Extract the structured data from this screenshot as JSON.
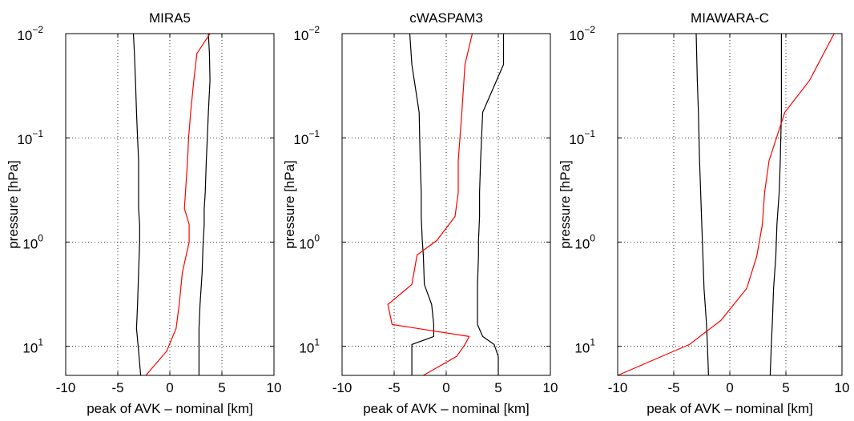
{
  "chart_data": [
    {
      "type": "line",
      "title": "MIRA5",
      "xlabel": "peak of AVK – nominal [km]",
      "ylabel": "pressure [hPa]",
      "xlim": [
        -10,
        10
      ],
      "xticks": [
        -10,
        -5,
        0,
        5,
        10
      ],
      "ylim": [
        0.01,
        19
      ],
      "yscale": "log",
      "yticks": [
        {
          "value": 0.01,
          "label": "10",
          "exponent": "−2"
        },
        {
          "value": 0.1,
          "label": "10",
          "exponent": "−1"
        },
        {
          "value": 1,
          "label": "10",
          "exponent": "0"
        },
        {
          "value": 10,
          "label": "10",
          "exponent": "1"
        }
      ],
      "grid": true,
      "y": [
        0.01,
        0.0155,
        0.0282,
        0.057,
        0.1,
        0.165,
        0.334,
        0.476,
        0.678,
        1,
        1.96,
        3.97,
        6.74,
        11.1,
        19
      ],
      "series": [
        {
          "color": "#000000",
          "values": [
            -3.5,
            -3.4,
            -3.3,
            -3.2,
            -3.1,
            -3.0,
            -3.0,
            -3.0,
            -2.9,
            -2.9,
            -3.0,
            -3.1,
            -3.2,
            -3.0,
            -2.8
          ]
        },
        {
          "color": "#000000",
          "values": [
            3.7,
            3.8,
            3.85,
            3.7,
            3.6,
            3.5,
            3.4,
            3.3,
            3.3,
            3.2,
            3.1,
            2.9,
            2.8,
            2.8,
            2.8
          ]
        },
        {
          "color": "#ff0000",
          "values": [
            3.85,
            2.6,
            2.3,
            2.0,
            1.8,
            1.7,
            1.5,
            1.4,
            1.85,
            1.85,
            1.2,
            0.9,
            0.6,
            -0.3,
            -2.3
          ]
        }
      ]
    },
    {
      "type": "line",
      "title": "cWASPAM3",
      "xlabel": "peak of AVK – nominal [km]",
      "ylabel": "pressure [hPa]",
      "xlim": [
        -10,
        10
      ],
      "xticks": [
        -10,
        -5,
        0,
        5,
        10
      ],
      "ylim": [
        0.01,
        19
      ],
      "yscale": "log",
      "yticks": [
        {
          "value": 0.01,
          "label": "10",
          "exponent": "−2"
        },
        {
          "value": 0.1,
          "label": "10",
          "exponent": "−1"
        },
        {
          "value": 1,
          "label": "10",
          "exponent": "0"
        },
        {
          "value": 10,
          "label": "10",
          "exponent": "1"
        }
      ],
      "grid": true,
      "y": [
        0.01,
        0.0198,
        0.057,
        0.165,
        0.334,
        0.568,
        0.965,
        1.33,
        2.55,
        3.97,
        6.17,
        8.05,
        9.6,
        12.5,
        19
      ],
      "series": [
        {
          "color": "#000000",
          "values": [
            -3.5,
            -3.3,
            -2.6,
            -2.5,
            -2.4,
            -2.4,
            -2.3,
            -2.2,
            -2.1,
            -1.4,
            -1.2,
            -1.2,
            -3.3,
            -3.3,
            -3.3
          ]
        },
        {
          "color": "#000000",
          "values": [
            5.5,
            5.5,
            3.5,
            3.3,
            3.2,
            3.2,
            3.1,
            3.1,
            3.0,
            3.0,
            3.0,
            3.5,
            4.6,
            5.0,
            5.0
          ]
        },
        {
          "color": "#ff0000",
          "values": [
            2.5,
            1.8,
            1.5,
            1.15,
            1.15,
            0.85,
            -0.9,
            -2.8,
            -3.3,
            -5.6,
            -5.2,
            2.2,
            1.8,
            1.0,
            -2.2
          ]
        }
      ]
    },
    {
      "type": "line",
      "title": "MIAWARA-C",
      "xlabel": "peak of AVK – nominal [km]",
      "ylabel": "pressure [hPa]",
      "xlim": [
        -10,
        10
      ],
      "xticks": [
        -10,
        -5,
        0,
        5,
        10
      ],
      "ylim": [
        0.01,
        19
      ],
      "yscale": "log",
      "yticks": [
        {
          "value": 0.01,
          "label": "10",
          "exponent": "−2"
        },
        {
          "value": 0.1,
          "label": "10",
          "exponent": "−1"
        },
        {
          "value": 1,
          "label": "10",
          "exponent": "0"
        },
        {
          "value": 10,
          "label": "10",
          "exponent": "1"
        }
      ],
      "grid": true,
      "y": [
        0.01,
        0.0282,
        0.057,
        0.165,
        0.334,
        0.678,
        1.37,
        2.79,
        5.65,
        9.6,
        19
      ],
      "series": [
        {
          "color": "#000000",
          "values": [
            -3.0,
            -2.9,
            -2.8,
            -2.7,
            -2.6,
            -2.5,
            -2.4,
            -2.3,
            -2.1,
            -2.0,
            -1.9
          ]
        },
        {
          "color": "#000000",
          "values": [
            4.6,
            4.6,
            4.6,
            4.5,
            4.4,
            4.2,
            4.1,
            3.9,
            3.8,
            3.7,
            3.6
          ]
        },
        {
          "color": "#ff0000",
          "values": [
            9.3,
            7.1,
            4.9,
            3.5,
            3.1,
            2.9,
            2.4,
            1.5,
            -0.8,
            -3.6,
            -10
          ]
        }
      ]
    }
  ]
}
